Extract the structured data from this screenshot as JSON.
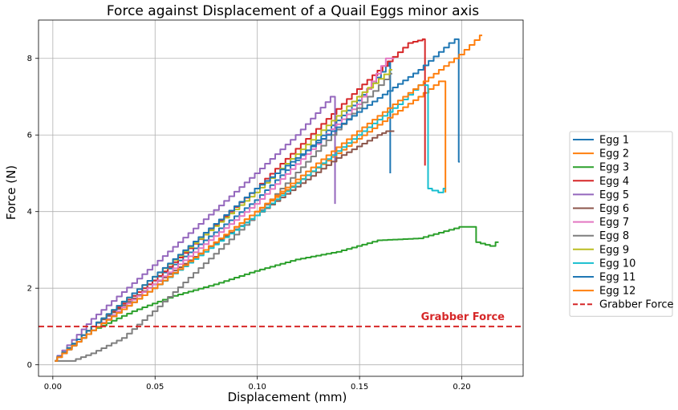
{
  "chart_data": {
    "type": "line",
    "title": "Force against Displacement of a Quail Eggs minor axis",
    "xlabel": "Displacement (mm)",
    "ylabel": "Force (N)",
    "xlim": [
      -0.007,
      0.23
    ],
    "ylim": [
      -0.3,
      9.0
    ],
    "xticks": [
      "0.00",
      "0.05",
      "0.10",
      "0.15",
      "0.20"
    ],
    "yticks": [
      "0",
      "2",
      "4",
      "6",
      "8"
    ],
    "grid": true,
    "legend_position": "right-outside",
    "series": [
      {
        "name": "Egg 1",
        "color": "#1f77b4",
        "points": [
          [
            0.001,
            0.1
          ],
          [
            0.02,
            1.0
          ],
          [
            0.05,
            2.2
          ],
          [
            0.1,
            4.3
          ],
          [
            0.15,
            6.9
          ],
          [
            0.164,
            7.8
          ],
          [
            0.165,
            7.9
          ],
          [
            0.165,
            5.0
          ]
        ]
      },
      {
        "name": "Egg 2",
        "color": "#ff7f0e",
        "points": [
          [
            0.001,
            0.1
          ],
          [
            0.02,
            0.9
          ],
          [
            0.05,
            2.0
          ],
          [
            0.1,
            4.0
          ],
          [
            0.15,
            5.9
          ],
          [
            0.18,
            7.0
          ],
          [
            0.19,
            7.4
          ],
          [
            0.192,
            7.4
          ],
          [
            0.192,
            4.5
          ]
        ]
      },
      {
        "name": "Egg 3",
        "color": "#2ca02c",
        "points": [
          [
            0.001,
            0.1
          ],
          [
            0.02,
            0.9
          ],
          [
            0.04,
            1.4
          ],
          [
            0.06,
            1.8
          ],
          [
            0.08,
            2.1
          ],
          [
            0.1,
            2.45
          ],
          [
            0.12,
            2.75
          ],
          [
            0.14,
            2.95
          ],
          [
            0.16,
            3.25
          ],
          [
            0.18,
            3.3
          ],
          [
            0.19,
            3.45
          ],
          [
            0.2,
            3.6
          ],
          [
            0.206,
            3.6
          ],
          [
            0.208,
            3.2
          ],
          [
            0.215,
            3.1
          ],
          [
            0.218,
            3.2
          ]
        ]
      },
      {
        "name": "Egg 4",
        "color": "#d62728",
        "points": [
          [
            0.001,
            0.1
          ],
          [
            0.02,
            1.0
          ],
          [
            0.05,
            2.2
          ],
          [
            0.1,
            4.6
          ],
          [
            0.15,
            7.2
          ],
          [
            0.175,
            8.4
          ],
          [
            0.182,
            8.5
          ],
          [
            0.182,
            5.2
          ]
        ]
      },
      {
        "name": "Egg 5",
        "color": "#9467bd",
        "points": [
          [
            0.001,
            0.1
          ],
          [
            0.02,
            1.2
          ],
          [
            0.05,
            2.6
          ],
          [
            0.1,
            5.0
          ],
          [
            0.12,
            6.0
          ],
          [
            0.137,
            7.0
          ],
          [
            0.138,
            7.0
          ],
          [
            0.138,
            4.2
          ]
        ]
      },
      {
        "name": "Egg 6",
        "color": "#8c564b",
        "points": [
          [
            0.001,
            0.1
          ],
          [
            0.02,
            1.0
          ],
          [
            0.05,
            2.1
          ],
          [
            0.1,
            3.9
          ],
          [
            0.14,
            5.4
          ],
          [
            0.16,
            6.0
          ],
          [
            0.164,
            6.1
          ],
          [
            0.167,
            6.1
          ]
        ]
      },
      {
        "name": "Egg 7",
        "color": "#e377c2",
        "points": [
          [
            0.001,
            0.1
          ],
          [
            0.02,
            0.9
          ],
          [
            0.05,
            2.1
          ],
          [
            0.1,
            4.2
          ],
          [
            0.15,
            6.8
          ],
          [
            0.164,
            8.0
          ],
          [
            0.167,
            8.0
          ]
        ]
      },
      {
        "name": "Egg 8",
        "color": "#7f7f7f",
        "points": [
          [
            0.001,
            0.1
          ],
          [
            0.01,
            0.1
          ],
          [
            0.02,
            0.3
          ],
          [
            0.035,
            0.7
          ],
          [
            0.05,
            1.4
          ],
          [
            0.1,
            3.9
          ],
          [
            0.15,
            6.7
          ],
          [
            0.166,
            7.6
          ]
        ]
      },
      {
        "name": "Egg 9",
        "color": "#bcbd22",
        "points": [
          [
            0.001,
            0.1
          ],
          [
            0.02,
            1.0
          ],
          [
            0.05,
            2.3
          ],
          [
            0.1,
            4.5
          ],
          [
            0.15,
            7.0
          ],
          [
            0.166,
            7.7
          ]
        ]
      },
      {
        "name": "Egg 10",
        "color": "#17becf",
        "points": [
          [
            0.001,
            0.1
          ],
          [
            0.02,
            0.9
          ],
          [
            0.05,
            2.0
          ],
          [
            0.1,
            3.9
          ],
          [
            0.15,
            6.0
          ],
          [
            0.17,
            6.8
          ],
          [
            0.18,
            7.3
          ],
          [
            0.183,
            7.3
          ],
          [
            0.184,
            4.6
          ],
          [
            0.19,
            4.5
          ],
          [
            0.192,
            4.6
          ]
        ]
      },
      {
        "name": "Egg 11",
        "color": "#1f77b4",
        "points": [
          [
            0.001,
            0.1
          ],
          [
            0.02,
            1.0
          ],
          [
            0.05,
            2.3
          ],
          [
            0.1,
            4.6
          ],
          [
            0.15,
            6.6
          ],
          [
            0.18,
            7.7
          ],
          [
            0.195,
            8.4
          ],
          [
            0.198,
            8.5
          ],
          [
            0.199,
            5.3
          ]
        ]
      },
      {
        "name": "Egg 12",
        "color": "#ff7f0e",
        "points": [
          [
            0.001,
            0.1
          ],
          [
            0.02,
            0.9
          ],
          [
            0.05,
            2.0
          ],
          [
            0.1,
            4.0
          ],
          [
            0.15,
            6.1
          ],
          [
            0.2,
            8.1
          ],
          [
            0.21,
            8.6
          ]
        ]
      }
    ],
    "hline": {
      "name": "Grabber Force",
      "y": 1.0,
      "color": "#d62728",
      "style": "dashed"
    },
    "annotations": [
      {
        "text": "Grabber Force",
        "x": 0.18,
        "y": 1.17,
        "color": "#d62728"
      }
    ]
  }
}
